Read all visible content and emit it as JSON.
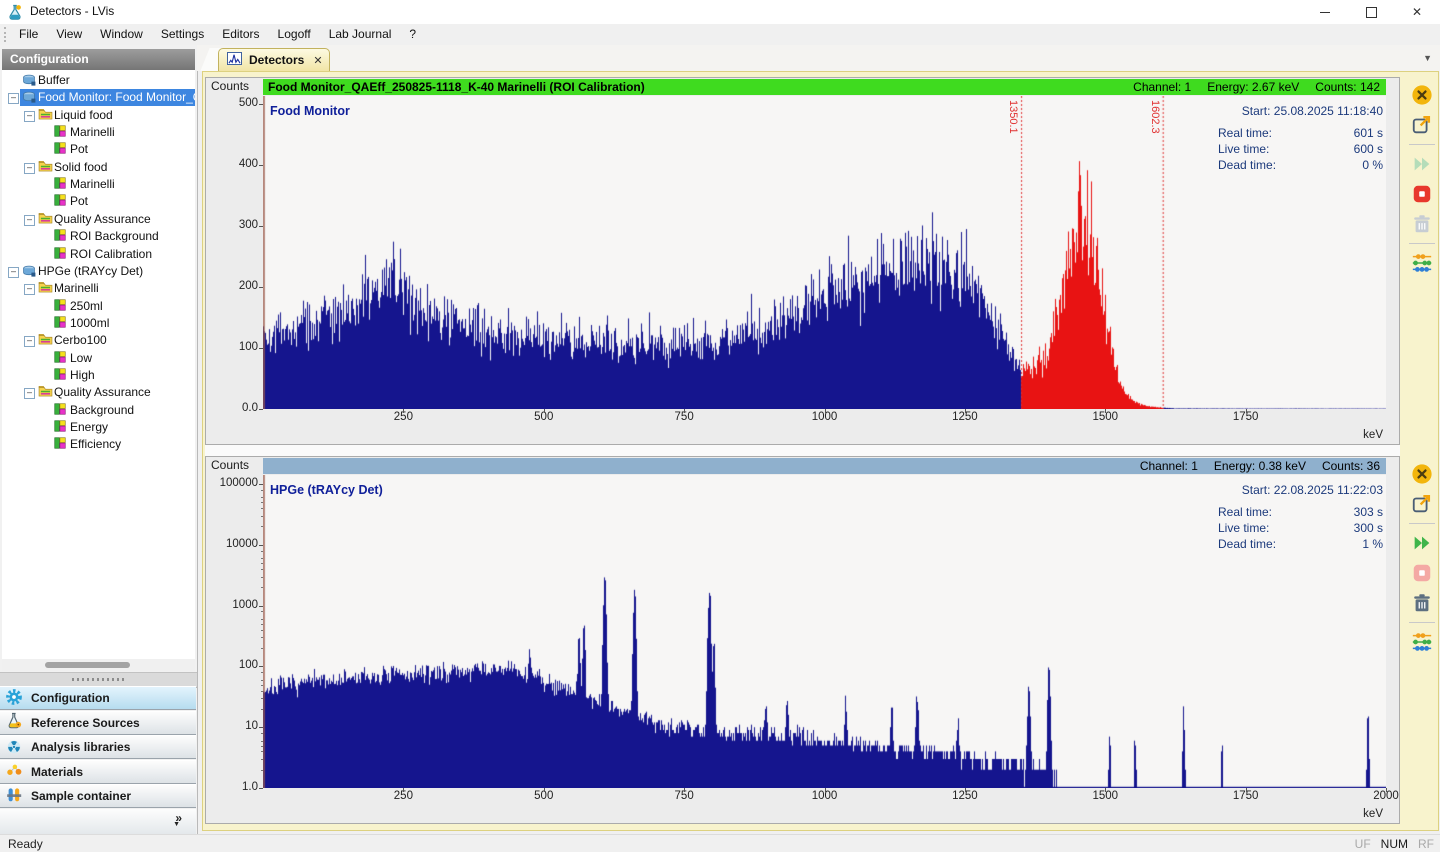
{
  "window": {
    "title": "Detectors - LVis"
  },
  "menu": [
    "File",
    "View",
    "Window",
    "Settings",
    "Editors",
    "Logoff",
    "Lab Journal",
    "?"
  ],
  "sidebar": {
    "header": "Configuration",
    "tree": [
      {
        "depth": 0,
        "icon": "detector",
        "label": "Buffer",
        "expander": false,
        "selected": false
      },
      {
        "depth": 0,
        "icon": "detector",
        "label": "Food Monitor: Food Monitor_Q",
        "expander": true,
        "selected": true
      },
      {
        "depth": 1,
        "icon": "folder",
        "label": "Liquid food",
        "expander": true,
        "selected": false
      },
      {
        "depth": 2,
        "icon": "sample",
        "label": "Marinelli",
        "expander": false,
        "selected": false
      },
      {
        "depth": 2,
        "icon": "sample",
        "label": "Pot",
        "expander": false,
        "selected": false
      },
      {
        "depth": 1,
        "icon": "folder",
        "label": "Solid food",
        "expander": true,
        "selected": false
      },
      {
        "depth": 2,
        "icon": "sample",
        "label": "Marinelli",
        "expander": false,
        "selected": false
      },
      {
        "depth": 2,
        "icon": "sample",
        "label": "Pot",
        "expander": false,
        "selected": false
      },
      {
        "depth": 1,
        "icon": "folder",
        "label": "Quality Assurance",
        "expander": true,
        "selected": false
      },
      {
        "depth": 2,
        "icon": "sample",
        "label": "ROI Background",
        "expander": false,
        "selected": false
      },
      {
        "depth": 2,
        "icon": "sample",
        "label": "ROI Calibration",
        "expander": false,
        "selected": false
      },
      {
        "depth": 0,
        "icon": "detector",
        "label": "HPGe (tRAYcy Det)",
        "expander": true,
        "selected": false
      },
      {
        "depth": 1,
        "icon": "folder",
        "label": "Marinelli",
        "expander": true,
        "selected": false
      },
      {
        "depth": 2,
        "icon": "sample",
        "label": "250ml",
        "expander": false,
        "selected": false
      },
      {
        "depth": 2,
        "icon": "sample",
        "label": "1000ml",
        "expander": false,
        "selected": false
      },
      {
        "depth": 1,
        "icon": "folder",
        "label": "Cerbo100",
        "expander": true,
        "selected": false
      },
      {
        "depth": 2,
        "icon": "sample",
        "label": "Low",
        "expander": false,
        "selected": false
      },
      {
        "depth": 2,
        "icon": "sample",
        "label": "High",
        "expander": false,
        "selected": false
      },
      {
        "depth": 1,
        "icon": "folder",
        "label": "Quality Assurance",
        "expander": true,
        "selected": false
      },
      {
        "depth": 2,
        "icon": "sample",
        "label": "Background",
        "expander": false,
        "selected": false
      },
      {
        "depth": 2,
        "icon": "sample",
        "label": "Energy",
        "expander": false,
        "selected": false
      },
      {
        "depth": 2,
        "icon": "sample",
        "label": "Efficiency",
        "expander": false,
        "selected": false
      }
    ],
    "nav": [
      {
        "icon": "gear",
        "label": "Configuration",
        "selected": true
      },
      {
        "icon": "flask",
        "label": "Reference Sources",
        "selected": false
      },
      {
        "icon": "trefoil",
        "label": "Analysis libraries",
        "selected": false
      },
      {
        "icon": "materials",
        "label": "Materials",
        "selected": false
      },
      {
        "icon": "tubes",
        "label": "Sample container",
        "selected": false
      }
    ],
    "overflow_chevron": "»"
  },
  "tab": {
    "label": "Detectors",
    "close": "✕"
  },
  "statusbar": {
    "message": "Ready",
    "flags": [
      {
        "label": "UF",
        "active": false
      },
      {
        "label": "NUM",
        "active": true
      },
      {
        "label": "RF",
        "active": false
      }
    ]
  },
  "spectra": [
    {
      "counts_label": "Counts",
      "header": {
        "title": "Food Monitor_QAEff_250825-1118_K-40 Marinelli (ROI Calibration)",
        "color": "#3fdb1f",
        "channel": "Channel: 1",
        "energy": "Energy: 2.67 keV",
        "counts": "Counts: 142"
      },
      "plot_label": "Food Monitor",
      "start": "Start: 25.08.2025 11:18:40",
      "stats": [
        {
          "k": "Real time:",
          "v": "601 s"
        },
        {
          "k": "Live time:",
          "v": "600 s"
        },
        {
          "k": "Dead time:",
          "v": "0 %"
        }
      ],
      "y_ticks": [
        "500",
        "400",
        "300",
        "200",
        "100",
        "0.0"
      ],
      "x_ticks": [
        "250",
        "500",
        "750",
        "1000",
        "1250",
        "1500",
        "1750"
      ],
      "x_unit": "keV",
      "roi_labels": [
        "1350.1",
        "1602.3"
      ],
      "toolbar": [
        {
          "name": "close-icon",
          "enabled": true
        },
        {
          "name": "export-icon",
          "enabled": true
        },
        {
          "name": "separator"
        },
        {
          "name": "fast-forward-icon",
          "enabled": false
        },
        {
          "name": "stop-icon",
          "enabled": true
        },
        {
          "name": "trash-icon",
          "enabled": false
        },
        {
          "name": "separator"
        },
        {
          "name": "channels-icon",
          "enabled": true
        }
      ]
    },
    {
      "counts_label": "Counts",
      "header": {
        "title": "",
        "color": "#8fb0cd",
        "channel": "Channel: 1",
        "energy": "Energy: 0.38 keV",
        "counts": "Counts: 36"
      },
      "plot_label": "HPGe (tRAYcy Det)",
      "start": "Start: 22.08.2025 11:22:03",
      "stats": [
        {
          "k": "Real time:",
          "v": "303 s"
        },
        {
          "k": "Live time:",
          "v": "300 s"
        },
        {
          "k": "Dead time:",
          "v": "1 %"
        }
      ],
      "y_ticks": [
        "100000",
        "10000",
        "1000",
        "100",
        "10",
        "1.0"
      ],
      "x_ticks": [
        "250",
        "500",
        "750",
        "1000",
        "1250",
        "1500",
        "1750",
        "2000"
      ],
      "x_unit": "keV",
      "roi_labels": [],
      "toolbar": [
        {
          "name": "close-icon",
          "enabled": true
        },
        {
          "name": "export-icon",
          "enabled": true
        },
        {
          "name": "separator"
        },
        {
          "name": "fast-forward-icon",
          "enabled": true
        },
        {
          "name": "stop-icon",
          "enabled": false
        },
        {
          "name": "trash-icon",
          "enabled": true
        },
        {
          "name": "separator"
        },
        {
          "name": "channels-icon",
          "enabled": true
        }
      ]
    }
  ],
  "chart_data": [
    {
      "type": "area",
      "title": "Food Monitor_QAEff_250825-1118_K-40 Marinelli (ROI Calibration)",
      "xlabel": "keV",
      "ylabel": "Counts",
      "x_range": [
        0,
        2000
      ],
      "y_scale": "linear",
      "y_range": [
        0,
        500
      ],
      "series_color": "#15158e",
      "roi_color": "#e81313",
      "roi": [
        1350.1,
        1602.3
      ],
      "continuum": [
        [
          0,
          118
        ],
        [
          50,
          132
        ],
        [
          120,
          150
        ],
        [
          190,
          178
        ],
        [
          230,
          210
        ],
        [
          248,
          196
        ],
        [
          300,
          152
        ],
        [
          360,
          135
        ],
        [
          450,
          122
        ],
        [
          560,
          113
        ],
        [
          680,
          106
        ],
        [
          780,
          110
        ],
        [
          860,
          122
        ],
        [
          930,
          148
        ],
        [
          1010,
          188
        ],
        [
          1090,
          220
        ],
        [
          1160,
          242
        ],
        [
          1215,
          238
        ],
        [
          1265,
          196
        ],
        [
          1310,
          132
        ],
        [
          1345,
          76
        ],
        [
          1380,
          58
        ],
        [
          1440,
          30
        ],
        [
          1520,
          10
        ],
        [
          1575,
          4
        ],
        [
          1605,
          2
        ],
        [
          1625,
          1
        ],
        [
          1700,
          0.7
        ],
        [
          2000,
          0.6
        ]
      ],
      "peaks": [
        {
          "center": 1460,
          "sigma": 33,
          "amplitude": 285
        },
        {
          "center": 237,
          "sigma": 6,
          "amplitude": 22
        }
      ],
      "noise": 0.28,
      "seed": 42
    },
    {
      "type": "area",
      "title": "HPGe (tRAYcy Det)",
      "xlabel": "keV",
      "ylabel": "Counts",
      "x_range": [
        0,
        2000
      ],
      "y_scale": "log",
      "y_range": [
        1,
        100000
      ],
      "series_color": "#15158e",
      "continuum": [
        [
          5,
          42
        ],
        [
          80,
          55
        ],
        [
          200,
          68
        ],
        [
          300,
          78
        ],
        [
          390,
          86
        ],
        [
          440,
          90
        ],
        [
          480,
          70
        ],
        [
          520,
          52
        ],
        [
          560,
          38
        ],
        [
          600,
          26
        ],
        [
          640,
          19
        ],
        [
          700,
          12
        ],
        [
          760,
          9.5
        ],
        [
          850,
          8
        ],
        [
          950,
          7
        ],
        [
          1050,
          5.5
        ],
        [
          1150,
          4.2
        ],
        [
          1250,
          3.2
        ],
        [
          1340,
          2.4
        ],
        [
          1400,
          1.9
        ],
        [
          1430,
          0.9
        ],
        [
          1500,
          0.5
        ],
        [
          2000,
          0.4
        ]
      ],
      "peaks": [
        {
          "center": 475,
          "sigma": 1.5,
          "amplitude": 110
        },
        {
          "center": 563,
          "sigma": 1.5,
          "amplitude": 300
        },
        {
          "center": 572,
          "sigma": 1.5,
          "amplitude": 460
        },
        {
          "center": 609,
          "sigma": 1.8,
          "amplitude": 3200
        },
        {
          "center": 662,
          "sigma": 1.8,
          "amplitude": 1500
        },
        {
          "center": 795,
          "sigma": 1.8,
          "amplitude": 1900
        },
        {
          "center": 803,
          "sigma": 1.5,
          "amplitude": 250
        },
        {
          "center": 896,
          "sigma": 1.5,
          "amplitude": 14
        },
        {
          "center": 934,
          "sigma": 1.5,
          "amplitude": 18
        },
        {
          "center": 1038,
          "sigma": 1.5,
          "amplitude": 24
        },
        {
          "center": 1120,
          "sigma": 1.5,
          "amplitude": 16
        },
        {
          "center": 1165,
          "sigma": 1.8,
          "amplitude": 32
        },
        {
          "center": 1238,
          "sigma": 1.5,
          "amplitude": 10
        },
        {
          "center": 1364,
          "sigma": 1.8,
          "amplitude": 48
        },
        {
          "center": 1400,
          "sigma": 1.8,
          "amplitude": 80
        },
        {
          "center": 1508,
          "sigma": 1.2,
          "amplitude": 7
        },
        {
          "center": 1553,
          "sigma": 1.2,
          "amplitude": 9
        },
        {
          "center": 1640,
          "sigma": 1.5,
          "amplitude": 14
        },
        {
          "center": 1708,
          "sigma": 1.2,
          "amplitude": 7
        },
        {
          "center": 1968,
          "sigma": 1.2,
          "amplitude": 18
        }
      ],
      "noise": 0.17,
      "seed": 7
    }
  ]
}
